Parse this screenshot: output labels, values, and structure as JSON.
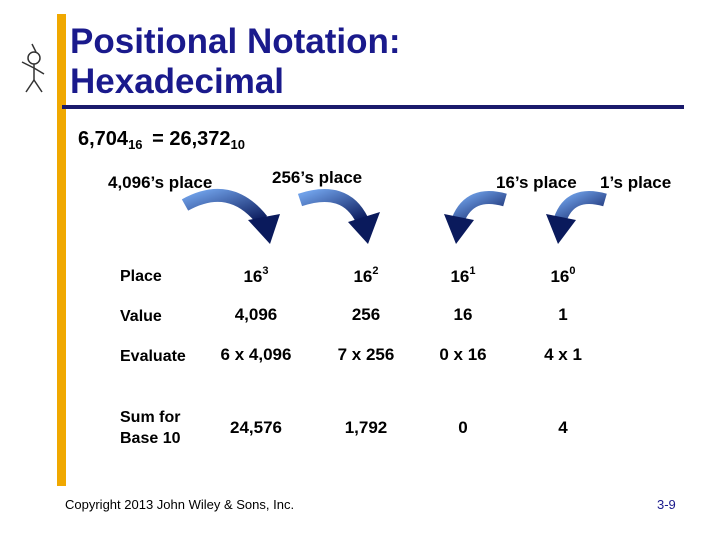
{
  "header": {
    "title_lines": [
      "Positional Notation:",
      "Hexadecimal"
    ]
  },
  "equation": {
    "hex": "6,704",
    "hex_base": "16",
    "equals": "= 26,372",
    "dec_base": "10"
  },
  "place_labels": [
    "4,096’s place",
    "256’s place",
    "16’s place",
    "1’s place"
  ],
  "table": {
    "rows": [
      {
        "label": [
          "Place"
        ],
        "cells": [
          {
            "base": "16",
            "exp": "3"
          },
          {
            "base": "16",
            "exp": "2"
          },
          {
            "base": "16",
            "exp": "1"
          },
          {
            "base": "16",
            "exp": "0"
          }
        ]
      },
      {
        "label": [
          "Value"
        ],
        "cells": [
          "4,096",
          "256",
          "16",
          "1"
        ]
      },
      {
        "label": [
          "Evaluate"
        ],
        "cells": [
          "6 x  4,096",
          "7 x 256",
          "0 x 16",
          "4 x 1"
        ]
      },
      {
        "label": [
          "Sum for",
          "Base 10"
        ],
        "cells": [
          "24,576",
          "1,792",
          "0",
          "4"
        ]
      }
    ]
  },
  "footer": {
    "copyright": "Copyright 2013 John Wiley & Sons, Inc.",
    "page": "3-9"
  }
}
